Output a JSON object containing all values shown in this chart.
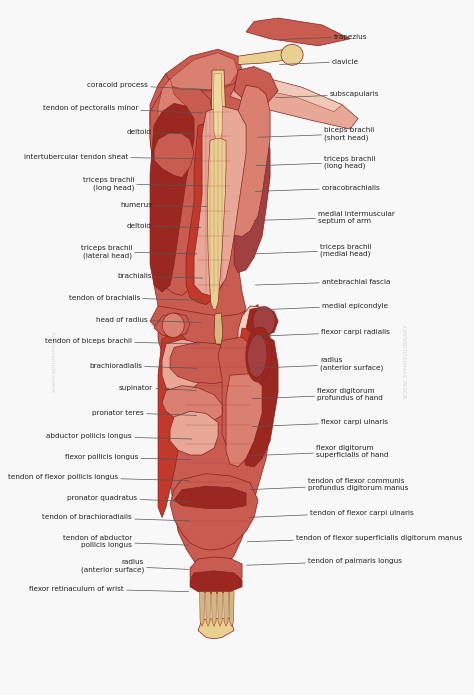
{
  "background_color": "#f8f8f8",
  "figsize": [
    4.74,
    6.95
  ],
  "dpi": 100,
  "label_fontsize": 5.2,
  "line_color": "#555555",
  "line_width": 0.5,
  "labels_left": [
    {
      "text": "coracoid process",
      "xl": 0.295,
      "yl": 0.878,
      "xp": 0.445,
      "yp": 0.872
    },
    {
      "text": "tendon of pectoralis minor",
      "xl": 0.27,
      "yl": 0.845,
      "xp": 0.435,
      "yp": 0.838
    },
    {
      "text": "deltoid",
      "xl": 0.305,
      "yl": 0.81,
      "xp": 0.415,
      "yp": 0.808
    },
    {
      "text": "intertubercular tendon sheat",
      "xl": 0.245,
      "yl": 0.775,
      "xp": 0.43,
      "yp": 0.772
    },
    {
      "text": "triceps brachii\n(long head)",
      "xl": 0.26,
      "yl": 0.736,
      "xp": 0.435,
      "yp": 0.733
    },
    {
      "text": "humerus",
      "xl": 0.305,
      "yl": 0.705,
      "xp": 0.445,
      "yp": 0.703
    },
    {
      "text": "deltoid",
      "xl": 0.305,
      "yl": 0.675,
      "xp": 0.43,
      "yp": 0.673
    },
    {
      "text": "triceps brachii\n(lateral head)",
      "xl": 0.255,
      "yl": 0.638,
      "xp": 0.42,
      "yp": 0.635
    },
    {
      "text": "brachialis",
      "xl": 0.305,
      "yl": 0.603,
      "xp": 0.435,
      "yp": 0.6
    },
    {
      "text": "tendon of brachialis",
      "xl": 0.275,
      "yl": 0.572,
      "xp": 0.435,
      "yp": 0.568
    },
    {
      "text": "head of radius",
      "xl": 0.295,
      "yl": 0.54,
      "xp": 0.43,
      "yp": 0.536
    },
    {
      "text": "tendon of biceps brachii",
      "xl": 0.255,
      "yl": 0.509,
      "xp": 0.43,
      "yp": 0.505
    },
    {
      "text": "brachioradialis",
      "xl": 0.28,
      "yl": 0.474,
      "xp": 0.42,
      "yp": 0.47
    },
    {
      "text": "supinator",
      "xl": 0.308,
      "yl": 0.442,
      "xp": 0.418,
      "yp": 0.438
    },
    {
      "text": "pronator teres",
      "xl": 0.285,
      "yl": 0.406,
      "xp": 0.42,
      "yp": 0.402
    },
    {
      "text": "abductor pollicis longus",
      "xl": 0.255,
      "yl": 0.372,
      "xp": 0.408,
      "yp": 0.368
    },
    {
      "text": "flexor pollicis longus",
      "xl": 0.27,
      "yl": 0.342,
      "xp": 0.405,
      "yp": 0.338
    },
    {
      "text": "tendon of flexor pollicis longus",
      "xl": 0.22,
      "yl": 0.313,
      "xp": 0.4,
      "yp": 0.308
    },
    {
      "text": "pronator quadratus",
      "xl": 0.268,
      "yl": 0.283,
      "xp": 0.402,
      "yp": 0.278
    },
    {
      "text": "tendon of brachioradialis",
      "xl": 0.255,
      "yl": 0.255,
      "xp": 0.4,
      "yp": 0.25
    },
    {
      "text": "tendon of abductor\npollicis longus",
      "xl": 0.255,
      "yl": 0.22,
      "xp": 0.4,
      "yp": 0.215
    },
    {
      "text": "radius\n(anterior surface)",
      "xl": 0.285,
      "yl": 0.185,
      "xp": 0.4,
      "yp": 0.18
    },
    {
      "text": "flexor retinaculum of wrist",
      "xl": 0.235,
      "yl": 0.152,
      "xp": 0.4,
      "yp": 0.148
    }
  ],
  "labels_right": [
    {
      "text": "trapezius",
      "xl": 0.76,
      "yl": 0.948,
      "xp": 0.62,
      "yp": 0.944
    },
    {
      "text": "clavicle",
      "xl": 0.755,
      "yl": 0.912,
      "xp": 0.62,
      "yp": 0.908
    },
    {
      "text": "subscapularis",
      "xl": 0.75,
      "yl": 0.865,
      "xp": 0.61,
      "yp": 0.86
    },
    {
      "text": "biceps brachii\n(short head)",
      "xl": 0.735,
      "yl": 0.808,
      "xp": 0.565,
      "yp": 0.803
    },
    {
      "text": "triceps brachii\n(long head)",
      "xl": 0.735,
      "yl": 0.767,
      "xp": 0.562,
      "yp": 0.762
    },
    {
      "text": "coracobrachialis",
      "xl": 0.73,
      "yl": 0.73,
      "xp": 0.56,
      "yp": 0.725
    },
    {
      "text": "medial intermuscular\nseptum of arm",
      "xl": 0.72,
      "yl": 0.688,
      "xp": 0.555,
      "yp": 0.683
    },
    {
      "text": "triceps brachii\n(medial head)",
      "xl": 0.725,
      "yl": 0.64,
      "xp": 0.56,
      "yp": 0.635
    },
    {
      "text": "antebrachial fascia",
      "xl": 0.73,
      "yl": 0.595,
      "xp": 0.56,
      "yp": 0.59
    },
    {
      "text": "medial epicondyle",
      "xl": 0.73,
      "yl": 0.56,
      "xp": 0.56,
      "yp": 0.554
    },
    {
      "text": "flexor carpi radialis",
      "xl": 0.728,
      "yl": 0.522,
      "xp": 0.558,
      "yp": 0.516
    },
    {
      "text": "radius\n(anterior surface)",
      "xl": 0.725,
      "yl": 0.476,
      "xp": 0.556,
      "yp": 0.47
    },
    {
      "text": "flexor digitorum\nprofundus of hand",
      "xl": 0.718,
      "yl": 0.432,
      "xp": 0.552,
      "yp": 0.426
    },
    {
      "text": "flexor carpi ulnaris",
      "xl": 0.728,
      "yl": 0.392,
      "xp": 0.552,
      "yp": 0.386
    },
    {
      "text": "flexor digitorum\nsuperficialis of hand",
      "xl": 0.715,
      "yl": 0.35,
      "xp": 0.55,
      "yp": 0.344
    },
    {
      "text": "tendon of flexor communis\nprofundus digitorum manus",
      "xl": 0.695,
      "yl": 0.302,
      "xp": 0.546,
      "yp": 0.295
    },
    {
      "text": "tendon of flexor carpi ulnaris",
      "xl": 0.7,
      "yl": 0.262,
      "xp": 0.544,
      "yp": 0.255
    },
    {
      "text": "tendon of flexor superficialis digitorum manus",
      "xl": 0.665,
      "yl": 0.226,
      "xp": 0.54,
      "yp": 0.22
    },
    {
      "text": "tendon of palmaris longus",
      "xl": 0.695,
      "yl": 0.192,
      "xp": 0.538,
      "yp": 0.186
    }
  ]
}
